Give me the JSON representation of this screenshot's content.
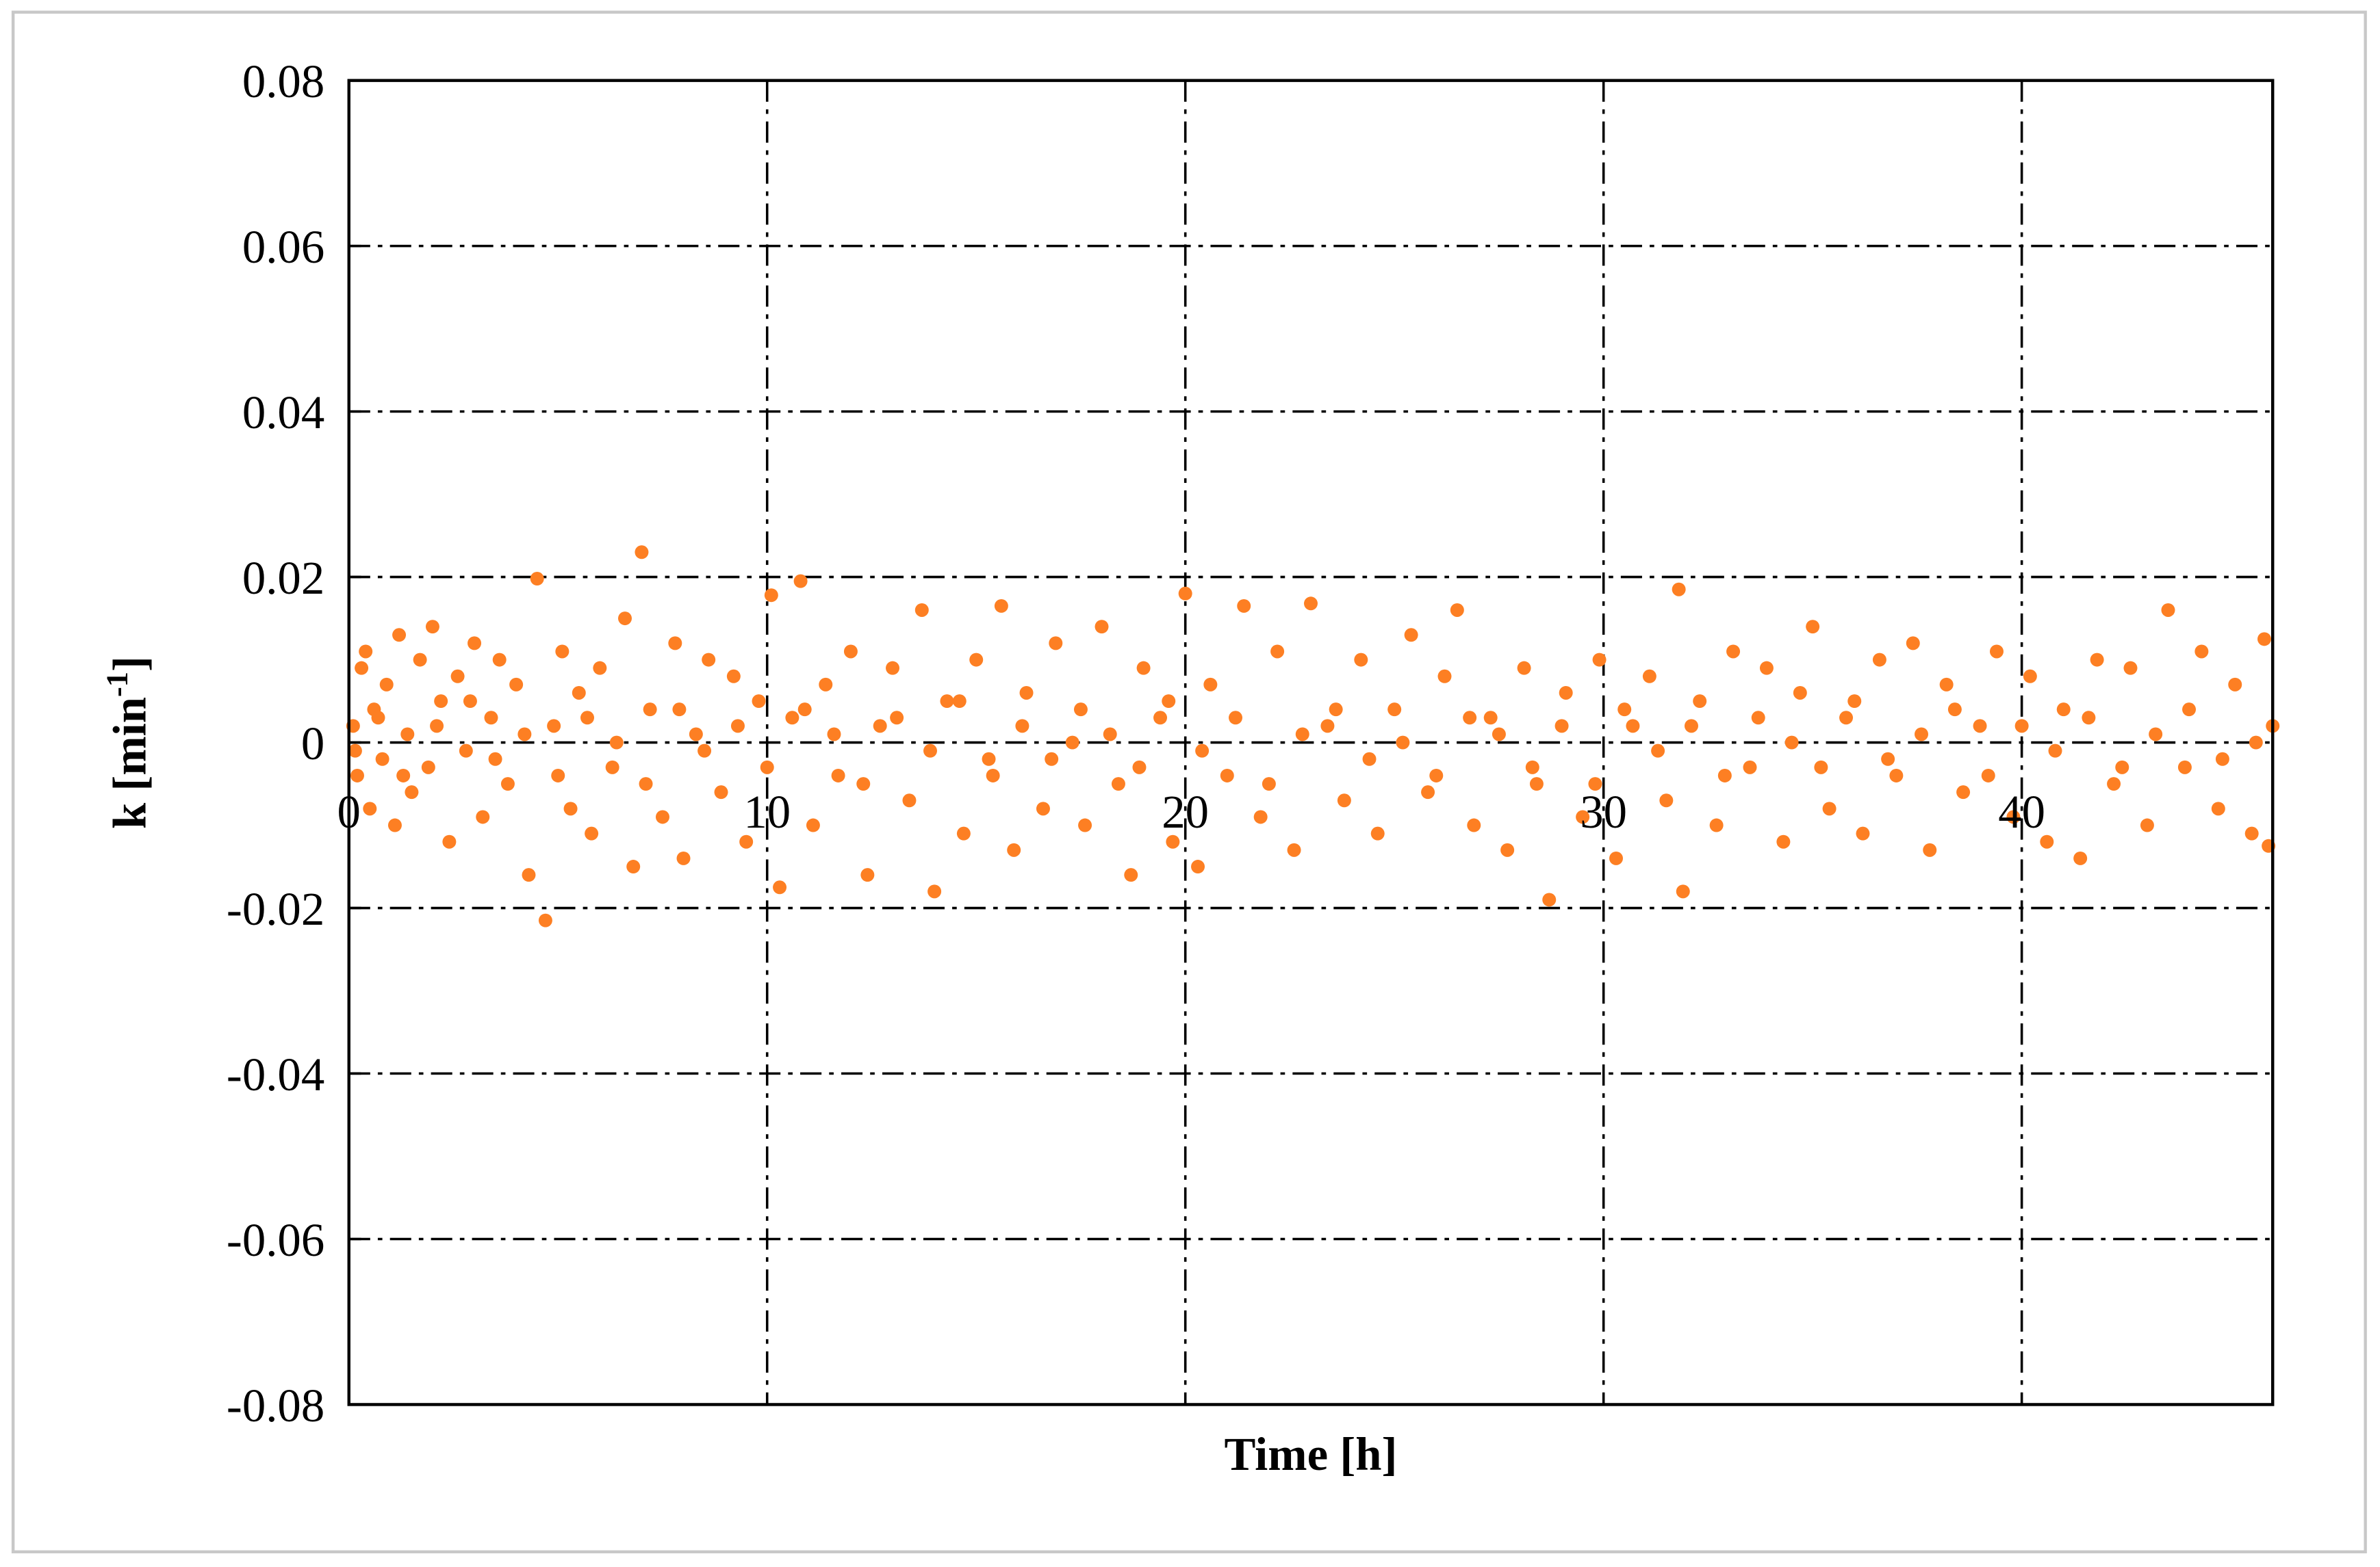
{
  "chart_data": {
    "type": "scatter",
    "x_label": "Time [h]",
    "y_label": {
      "text": "k [min",
      "superscript": "-1",
      "suffix": "]"
    },
    "color": "#fd7f23",
    "grid": true,
    "xlim": [
      0,
      46
    ],
    "xticks": [
      0,
      10,
      20,
      30,
      40
    ],
    "ylim": [
      -0.08,
      0.08
    ],
    "yticks": [
      -0.08,
      -0.06,
      -0.04,
      -0.02,
      0,
      0.02,
      0.04,
      0.06,
      0.08
    ],
    "x": [
      0.1,
      0.2,
      0.3,
      0.4,
      0.5,
      0.6,
      0.8,
      0.9,
      1.1,
      1.2,
      1.4,
      1.5,
      1.7,
      1.9,
      2.0,
      2.2,
      2.4,
      2.6,
      2.8,
      3.0,
      3.2,
      3.4,
      3.6,
      3.8,
      4.0,
      4.3,
      4.5,
      4.7,
      4.9,
      5.1,
      5.3,
      5.5,
      5.8,
      6.0,
      6.3,
      6.6,
      6.8,
      7.0,
      7.2,
      7.5,
      7.8,
      8.0,
      8.3,
      8.6,
      8.9,
      9.2,
      9.5,
      9.8,
      10.1,
      10.3,
      10.6,
      10.8,
      11.1,
      11.4,
      11.7,
      12.0,
      12.4,
      12.7,
      13.0,
      13.4,
      13.7,
      14.0,
      14.3,
      14.7,
      15.0,
      15.3,
      15.6,
      15.9,
      16.2,
      16.6,
      16.9,
      17.3,
      17.6,
      18.0,
      18.4,
      18.7,
      19.0,
      19.4,
      19.7,
      20.0,
      20.3,
      20.6,
      21.0,
      21.4,
      21.8,
      22.2,
      22.6,
      23.0,
      23.4,
      23.8,
      24.2,
      24.6,
      25.0,
      25.4,
      25.8,
      26.2,
      26.5,
      26.9,
      27.3,
      27.7,
      28.1,
      28.4,
      28.7,
      29.1,
      29.5,
      29.9,
      30.3,
      30.7,
      31.1,
      31.5,
      31.8,
      31.9,
      32.3,
      32.7,
      33.1,
      33.5,
      33.9,
      34.3,
      34.7,
      35.0,
      35.4,
      35.8,
      36.2,
      36.6,
      37.0,
      37.4,
      37.8,
      38.2,
      38.6,
      39.0,
      39.4,
      39.8,
      40.2,
      40.6,
      41.0,
      41.4,
      41.8,
      42.2,
      42.6,
      43.0,
      43.5,
      43.9,
      44.3,
      44.7,
      45.1,
      45.5,
      45.8,
      45.9,
      46.0,
      0.15,
      0.7,
      1.3,
      2.1,
      2.9,
      3.5,
      4.2,
      5.0,
      5.7,
      6.4,
      7.1,
      7.9,
      8.5,
      9.3,
      10.0,
      10.9,
      11.6,
      12.3,
      13.1,
      13.9,
      14.6,
      15.4,
      16.1,
      16.8,
      17.5,
      18.2,
      18.9,
      19.6,
      20.4,
      21.2,
      22.0,
      22.8,
      23.6,
      24.4,
      25.2,
      26.0,
      26.8,
      27.5,
      28.3,
      29.0,
      29.8,
      30.5,
      31.3,
      32.1,
      32.9,
      33.7,
      34.5,
      35.2,
      36.0,
      36.8,
      37.6,
      38.4,
      39.2,
      40.0,
      40.8,
      41.6,
      42.4,
      43.2,
      44.0,
      44.8,
      45.6
    ],
    "values": [
      0.002,
      -0.004,
      0.009,
      0.011,
      -0.008,
      0.004,
      -0.002,
      0.007,
      -0.01,
      0.013,
      0.001,
      -0.006,
      0.01,
      -0.003,
      0.014,
      0.005,
      -0.012,
      0.008,
      -0.001,
      0.012,
      -0.009,
      0.003,
      0.01,
      -0.005,
      0.007,
      -0.016,
      0.0198,
      -0.0215,
      0.002,
      0.011,
      -0.008,
      0.006,
      -0.011,
      0.009,
      -0.003,
      0.015,
      -0.015,
      0.023,
      0.004,
      -0.009,
      0.012,
      -0.014,
      0.001,
      0.01,
      -0.006,
      0.008,
      -0.012,
      0.005,
      0.0178,
      -0.0175,
      0.003,
      0.0195,
      -0.01,
      0.007,
      -0.004,
      0.011,
      -0.016,
      0.002,
      0.009,
      -0.007,
      0.016,
      -0.018,
      0.005,
      -0.011,
      0.01,
      -0.002,
      0.0165,
      -0.013,
      0.006,
      -0.008,
      0.012,
      0.0,
      -0.01,
      0.014,
      -0.005,
      -0.016,
      0.009,
      0.003,
      -0.012,
      0.018,
      -0.015,
      0.007,
      -0.004,
      0.0165,
      -0.009,
      0.011,
      -0.013,
      0.0168,
      0.002,
      -0.007,
      0.01,
      -0.011,
      0.004,
      0.013,
      -0.006,
      0.008,
      0.016,
      -0.01,
      0.003,
      -0.013,
      0.009,
      -0.005,
      -0.019,
      0.006,
      -0.009,
      0.01,
      -0.014,
      0.002,
      0.008,
      -0.007,
      0.0185,
      -0.018,
      0.005,
      -0.01,
      0.011,
      -0.003,
      0.009,
      -0.012,
      0.006,
      0.014,
      -0.008,
      0.003,
      -0.011,
      0.01,
      -0.004,
      0.012,
      -0.013,
      0.007,
      -0.006,
      0.002,
      0.011,
      -0.009,
      0.008,
      -0.012,
      0.004,
      -0.014,
      0.01,
      -0.005,
      0.009,
      -0.01,
      0.016,
      -0.003,
      0.011,
      -0.008,
      0.007,
      -0.011,
      0.0125,
      -0.0125,
      0.002,
      -0.001,
      0.003,
      -0.004,
      0.002,
      0.005,
      -0.002,
      0.001,
      -0.004,
      0.003,
      0.0,
      -0.005,
      0.004,
      -0.001,
      0.002,
      -0.003,
      0.004,
      0.001,
      -0.005,
      0.003,
      -0.001,
      0.005,
      -0.004,
      0.002,
      -0.002,
      0.004,
      0.001,
      -0.003,
      0.005,
      -0.001,
      0.003,
      -0.005,
      0.001,
      0.004,
      -0.002,
      0.0,
      -0.004,
      0.003,
      0.001,
      -0.003,
      0.002,
      -0.005,
      0.004,
      -0.001,
      0.002,
      -0.004,
      0.003,
      0.0,
      -0.003,
      0.005,
      -0.002,
      0.001,
      0.004,
      -0.004,
      0.002,
      -0.001,
      0.003,
      -0.003,
      0.001,
      0.004,
      -0.002,
      0.0
    ]
  }
}
